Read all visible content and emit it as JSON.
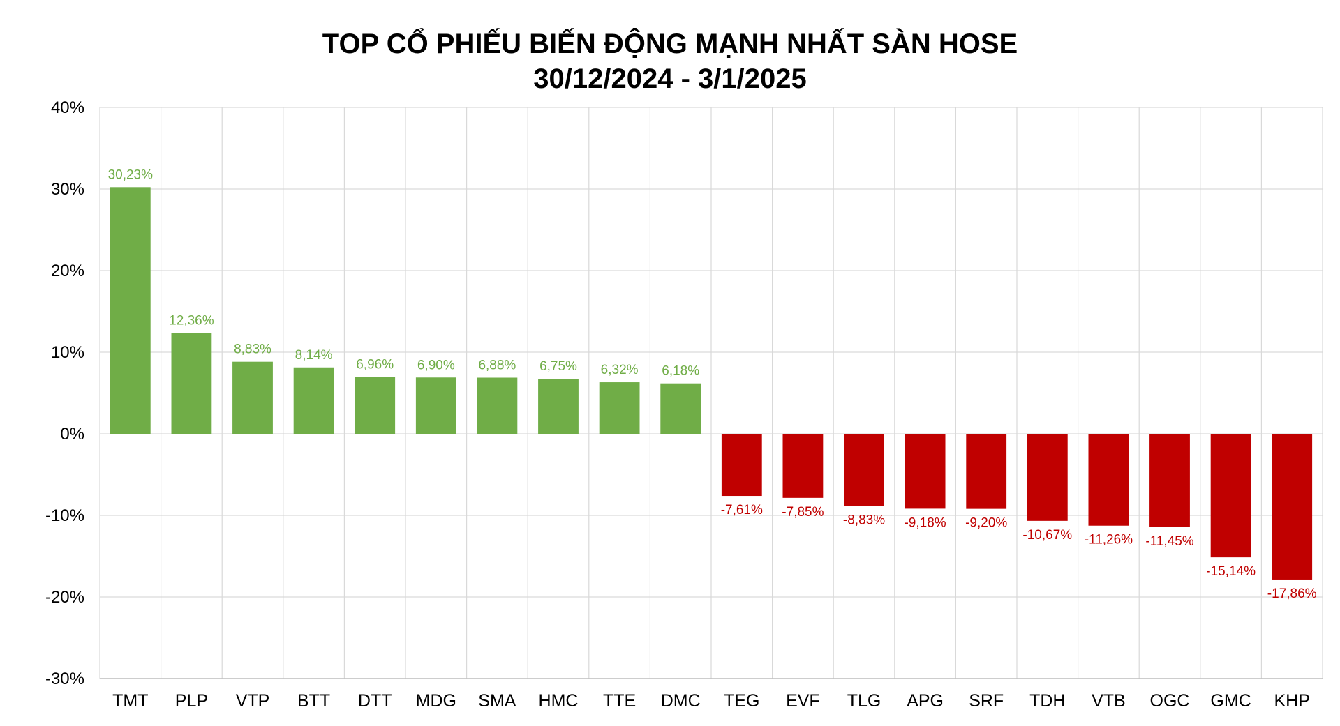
{
  "chart_data": {
    "type": "bar",
    "title": "TOP CỔ PHIẾU BIẾN ĐỘNG MẠNH NHẤT SÀN HOSE",
    "subtitle": "30/12/2024 - 3/1/2025",
    "xlabel": "",
    "ylabel": "",
    "ylim": [
      -30,
      40
    ],
    "yticks": [
      40,
      30,
      20,
      10,
      0,
      -10,
      -20,
      -30
    ],
    "ytick_labels": [
      "40%",
      "30%",
      "20%",
      "10%",
      "0%",
      "-10%",
      "-20%",
      "-30%"
    ],
    "grid": true,
    "legend": "none",
    "categories": [
      "TMT",
      "PLP",
      "VTP",
      "BTT",
      "DTT",
      "MDG",
      "SMA",
      "HMC",
      "TTE",
      "DMC",
      "TEG",
      "EVF",
      "TLG",
      "APG",
      "SRF",
      "TDH",
      "VTB",
      "OGC",
      "GMC",
      "KHP"
    ],
    "values": [
      30.23,
      12.36,
      8.83,
      8.14,
      6.96,
      6.9,
      6.88,
      6.75,
      6.32,
      6.18,
      -7.61,
      -7.85,
      -8.83,
      -9.18,
      -9.2,
      -10.67,
      -11.26,
      -11.45,
      -15.14,
      -17.86
    ],
    "data_labels": [
      "30,23%",
      "12,36%",
      "8,83%",
      "8,14%",
      "6,96%",
      "6,90%",
      "6,88%",
      "6,75%",
      "6,32%",
      "6,18%",
      "-7,61%",
      "-7,85%",
      "-8,83%",
      "-9,18%",
      "-9,20%",
      "-10,67%",
      "-11,26%",
      "-11,45%",
      "-15,14%",
      "-17,86%"
    ],
    "colors": {
      "positive_bar": "#70ad47",
      "negative_bar": "#c00000",
      "positive_label": "#70ad47",
      "negative_label": "#c00000"
    }
  }
}
